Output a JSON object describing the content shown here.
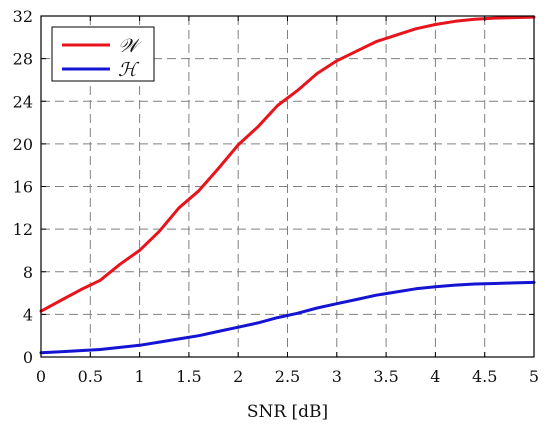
{
  "chart_data": {
    "type": "line",
    "title": "",
    "xlabel": "SNR [dB]",
    "ylabel": "",
    "xlim": [
      0,
      5
    ],
    "ylim": [
      0,
      32
    ],
    "xticks": [
      0,
      0.5,
      1,
      1.5,
      2,
      2.5,
      3,
      3.5,
      4,
      4.5,
      5
    ],
    "xtick_labels": [
      "0",
      "0.5",
      "1",
      "1.5",
      "2",
      "2.5",
      "3",
      "3.5",
      "4",
      "4.5",
      "5"
    ],
    "yticks": [
      0,
      4,
      8,
      12,
      16,
      20,
      24,
      28,
      32
    ],
    "ytick_labels": [
      "0",
      "4",
      "8",
      "12",
      "16",
      "20",
      "24",
      "28",
      "32"
    ],
    "grid": true,
    "legend_position": "top-left",
    "series": [
      {
        "name": "𝒲",
        "color": "#e8141c",
        "x": [
          0,
          0.2,
          0.4,
          0.6,
          0.8,
          1.0,
          1.2,
          1.4,
          1.6,
          1.8,
          2.0,
          2.2,
          2.4,
          2.6,
          2.8,
          3.0,
          3.2,
          3.4,
          3.6,
          3.8,
          4.0,
          4.2,
          4.4,
          4.6,
          4.8,
          5.0
        ],
        "y": [
          4.3,
          5.3,
          6.3,
          7.2,
          8.7,
          10.0,
          11.8,
          14.0,
          15.6,
          17.7,
          19.9,
          21.6,
          23.6,
          25.0,
          26.6,
          27.8,
          28.7,
          29.6,
          30.2,
          30.8,
          31.2,
          31.5,
          31.7,
          31.8,
          31.85,
          31.9
        ]
      },
      {
        "name": "ℋ",
        "color": "#1414d2",
        "x": [
          0,
          0.2,
          0.4,
          0.6,
          0.8,
          1.0,
          1.2,
          1.4,
          1.6,
          1.8,
          2.0,
          2.2,
          2.4,
          2.6,
          2.8,
          3.0,
          3.2,
          3.4,
          3.6,
          3.8,
          4.0,
          4.2,
          4.4,
          4.6,
          4.8,
          5.0
        ],
        "y": [
          0.4,
          0.5,
          0.6,
          0.7,
          0.9,
          1.1,
          1.4,
          1.7,
          2.0,
          2.4,
          2.8,
          3.2,
          3.7,
          4.1,
          4.6,
          5.0,
          5.4,
          5.8,
          6.1,
          6.4,
          6.6,
          6.75,
          6.85,
          6.9,
          6.95,
          7.0
        ]
      }
    ]
  }
}
